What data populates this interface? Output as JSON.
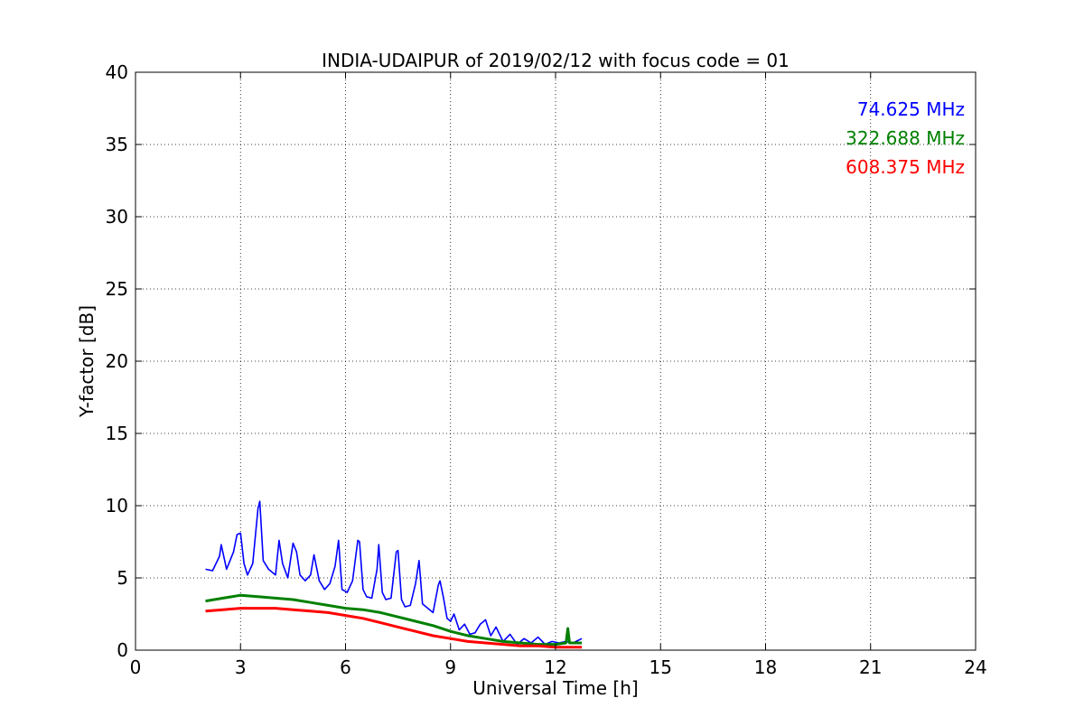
{
  "chart_data": {
    "type": "line",
    "title": "INDIA-UDAIPUR of 2019/02/12 with focus code = 01",
    "xlabel": "Universal Time [h]",
    "ylabel": "Y-factor [dB]",
    "xlim": [
      0,
      24
    ],
    "ylim": [
      0,
      40
    ],
    "xticks": [
      0,
      3,
      6,
      9,
      12,
      15,
      18,
      21,
      24
    ],
    "yticks": [
      0,
      5,
      10,
      15,
      20,
      25,
      30,
      35,
      40
    ],
    "xtick_labels": [
      "0",
      "3",
      "6",
      "9",
      "12",
      "15",
      "18",
      "21",
      "24"
    ],
    "ytick_labels": [
      "0",
      "5",
      "10",
      "15",
      "20",
      "25",
      "30",
      "35",
      "40"
    ],
    "grid": true,
    "legend_placement": "top-right",
    "series": [
      {
        "name": "74.625 MHz",
        "color": "#0000ff",
        "x": [
          2.0,
          2.2,
          2.4,
          2.45,
          2.6,
          2.8,
          2.9,
          3.0,
          3.1,
          3.2,
          3.35,
          3.5,
          3.55,
          3.65,
          3.8,
          4.0,
          4.1,
          4.2,
          4.35,
          4.5,
          4.6,
          4.7,
          4.85,
          5.0,
          5.1,
          5.25,
          5.4,
          5.55,
          5.7,
          5.8,
          5.9,
          6.05,
          6.2,
          6.35,
          6.4,
          6.5,
          6.6,
          6.75,
          6.9,
          6.95,
          7.05,
          7.15,
          7.3,
          7.45,
          7.5,
          7.6,
          7.7,
          7.85,
          8.0,
          8.1,
          8.2,
          8.35,
          8.5,
          8.65,
          8.7,
          8.8,
          8.9,
          9.0,
          9.1,
          9.25,
          9.4,
          9.55,
          9.7,
          9.85,
          10.0,
          10.15,
          10.3,
          10.5,
          10.7,
          10.9,
          11.1,
          11.3,
          11.5,
          11.7,
          11.9,
          12.1,
          12.3,
          12.5,
          12.75
        ],
        "y": [
          5.6,
          5.5,
          6.5,
          7.3,
          5.6,
          6.8,
          8.0,
          8.1,
          6.0,
          5.2,
          6.0,
          9.8,
          10.3,
          6.2,
          5.6,
          5.2,
          7.6,
          6.0,
          5.0,
          7.4,
          6.8,
          5.2,
          4.8,
          5.2,
          6.6,
          4.8,
          4.2,
          4.6,
          5.8,
          7.6,
          4.2,
          4.0,
          4.8,
          7.6,
          7.5,
          4.2,
          3.7,
          3.6,
          5.6,
          7.3,
          4.0,
          3.5,
          3.6,
          6.8,
          6.9,
          3.5,
          3.0,
          3.1,
          4.6,
          6.2,
          3.2,
          2.9,
          2.6,
          4.5,
          4.8,
          3.6,
          2.2,
          2.0,
          2.5,
          1.4,
          1.8,
          1.1,
          1.2,
          1.8,
          2.1,
          1.0,
          1.6,
          0.6,
          1.1,
          0.4,
          0.8,
          0.5,
          0.9,
          0.4,
          0.6,
          0.5,
          0.6,
          0.5,
          0.8
        ]
      },
      {
        "name": "322.688 MHz",
        "color": "#008000",
        "x": [
          2.0,
          2.5,
          3.0,
          3.5,
          4.0,
          4.5,
          5.0,
          5.5,
          6.0,
          6.5,
          7.0,
          7.5,
          8.0,
          8.5,
          9.0,
          9.5,
          10.0,
          10.5,
          11.0,
          11.5,
          12.0,
          12.3,
          12.35,
          12.4,
          12.75
        ],
        "y": [
          3.4,
          3.6,
          3.8,
          3.7,
          3.6,
          3.5,
          3.3,
          3.1,
          2.9,
          2.8,
          2.6,
          2.3,
          2.0,
          1.7,
          1.3,
          1.0,
          0.8,
          0.6,
          0.5,
          0.4,
          0.4,
          0.5,
          1.5,
          0.5,
          0.5
        ]
      },
      {
        "name": "608.375 MHz",
        "color": "#ff0000",
        "x": [
          2.0,
          2.5,
          3.0,
          3.5,
          4.0,
          4.5,
          5.0,
          5.5,
          6.0,
          6.5,
          7.0,
          7.5,
          8.0,
          8.5,
          9.0,
          9.5,
          10.0,
          10.5,
          11.0,
          11.5,
          12.0,
          12.75
        ],
        "y": [
          2.7,
          2.8,
          2.9,
          2.9,
          2.9,
          2.8,
          2.7,
          2.6,
          2.4,
          2.2,
          1.9,
          1.6,
          1.3,
          1.0,
          0.8,
          0.6,
          0.5,
          0.4,
          0.3,
          0.3,
          0.2,
          0.2
        ]
      }
    ]
  }
}
